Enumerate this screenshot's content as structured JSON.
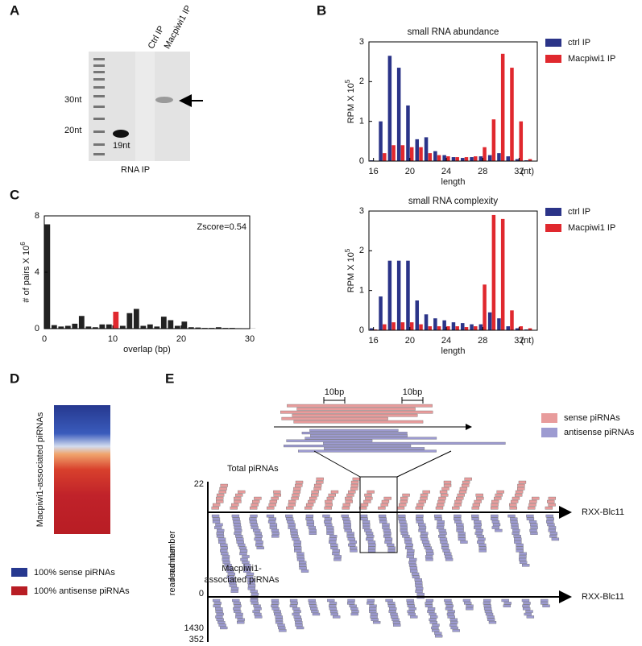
{
  "panel_labels": [
    "A",
    "B",
    "C",
    "D",
    "E"
  ],
  "gel": {
    "lanes": [
      "Ctrl IP",
      "Macpiwi1 IP"
    ],
    "markers": [
      "30nt",
      "20nt"
    ],
    "band_label": "19nt",
    "caption": "RNA IP"
  },
  "chart_data": [
    {
      "type": "bar",
      "title": "small RNA abundance",
      "ylabel": "RPM X 10",
      "ylabel_exp": "5",
      "xlabel": "length",
      "x_unit": "(nt)",
      "x": [
        16,
        17,
        18,
        19,
        20,
        21,
        22,
        23,
        24,
        25,
        26,
        27,
        28,
        29,
        30,
        31,
        32,
        33
      ],
      "xlim": [
        15.5,
        34
      ],
      "xticks": [
        16,
        20,
        24,
        28,
        32
      ],
      "ylim": [
        0,
        3
      ],
      "yticks": [
        0,
        1,
        2,
        3
      ],
      "legend": "right-outside",
      "series": [
        {
          "name": "ctrl IP",
          "color": "#2b3488",
          "values": [
            0.02,
            1.0,
            2.65,
            2.35,
            1.4,
            0.55,
            0.6,
            0.25,
            0.15,
            0.1,
            0.08,
            0.1,
            0.12,
            0.15,
            0.2,
            0.12,
            0.05,
            0.02
          ]
        },
        {
          "name": "Macpiwi1 IP",
          "color": "#e0282e",
          "values": [
            0.01,
            0.2,
            0.4,
            0.4,
            0.35,
            0.35,
            0.2,
            0.15,
            0.12,
            0.1,
            0.1,
            0.12,
            0.35,
            1.05,
            2.7,
            2.35,
            1.0,
            0.05
          ]
        }
      ]
    },
    {
      "type": "bar",
      "title": "small RNA complexity",
      "ylabel": "RPM X 10",
      "ylabel_exp": "5",
      "xlabel": "length",
      "x_unit": "(nt)",
      "x": [
        16,
        17,
        18,
        19,
        20,
        21,
        22,
        23,
        24,
        25,
        26,
        27,
        28,
        29,
        30,
        31,
        32,
        33
      ],
      "xlim": [
        15.5,
        34
      ],
      "xticks": [
        16,
        20,
        24,
        28,
        32
      ],
      "ylim": [
        0,
        3
      ],
      "yticks": [
        0,
        1,
        2,
        3
      ],
      "legend": "right-outside",
      "series": [
        {
          "name": "ctrl IP",
          "color": "#2b3488",
          "values": [
            0.05,
            0.85,
            1.75,
            1.75,
            1.75,
            0.75,
            0.4,
            0.3,
            0.25,
            0.2,
            0.18,
            0.15,
            0.15,
            0.45,
            0.3,
            0.1,
            0.05,
            0.02
          ]
        },
        {
          "name": "Macpiwi1 IP",
          "color": "#e0282e",
          "values": [
            0.02,
            0.15,
            0.2,
            0.2,
            0.2,
            0.15,
            0.1,
            0.1,
            0.1,
            0.1,
            0.08,
            0.1,
            1.15,
            2.9,
            2.8,
            0.5,
            0.1,
            0.05
          ]
        }
      ]
    },
    {
      "type": "histogram",
      "ylabel": "# of pairs X 10",
      "ylabel_exp": "6",
      "xlabel": "overlap (bp)",
      "annotation": "Zscore=0.54",
      "x": [
        0,
        1,
        2,
        3,
        4,
        5,
        6,
        7,
        8,
        9,
        10,
        11,
        12,
        13,
        14,
        15,
        16,
        17,
        18,
        19,
        20,
        21,
        22,
        23,
        24,
        25,
        26,
        27,
        28,
        29,
        30
      ],
      "values": [
        7.4,
        0.25,
        0.15,
        0.2,
        0.35,
        0.9,
        0.15,
        0.1,
        0.3,
        0.3,
        1.2,
        0.2,
        1.1,
        1.4,
        0.2,
        0.3,
        0.15,
        0.85,
        0.6,
        0.2,
        0.5,
        0.1,
        0.08,
        0.05,
        0.05,
        0.1,
        0.05,
        0.05,
        0.03,
        0.02,
        0.01
      ],
      "colors": [
        "#222",
        "#222",
        "#222",
        "#222",
        "#222",
        "#222",
        "#222",
        "#222",
        "#222",
        "#222",
        "#e0282e",
        "#222",
        "#222",
        "#222",
        "#222",
        "#222",
        "#222",
        "#222",
        "#222",
        "#222",
        "#222",
        "#222",
        "#222",
        "#222",
        "#222",
        "#222",
        "#222",
        "#222",
        "#222",
        "#222",
        "#222"
      ],
      "xlim": [
        0,
        30
      ],
      "xticks": [
        0,
        10,
        20,
        30
      ],
      "ylim": [
        0,
        8
      ],
      "yticks": [
        0,
        4,
        8
      ]
    }
  ],
  "heatmap": {
    "label": "Macpiwi1-associated piRNAs",
    "legend": [
      {
        "label": "100% sense piRNAs",
        "color": "#26388f"
      },
      {
        "label": "100% antisense piRNAs",
        "color": "#b81d24"
      }
    ]
  },
  "tracks": {
    "scale_labels": [
      "10bp",
      "10bp"
    ],
    "legend": [
      {
        "label": "sense piRNAs",
        "color": "#e89c9c"
      },
      {
        "label": "antisense piRNAs",
        "color": "#9d9bd1"
      }
    ],
    "panels": [
      {
        "title": "Total piRNAs",
        "ylabel": "read number",
        "top": 22,
        "bottom": 1430,
        "gene": "RXX-Blc11"
      },
      {
        "title_lines": [
          "Macpiwi1-",
          "associated piRNAs"
        ],
        "ylabel": "read number",
        "top": 0,
        "bottom": 352,
        "gene": "RXX-Blc11"
      }
    ]
  }
}
